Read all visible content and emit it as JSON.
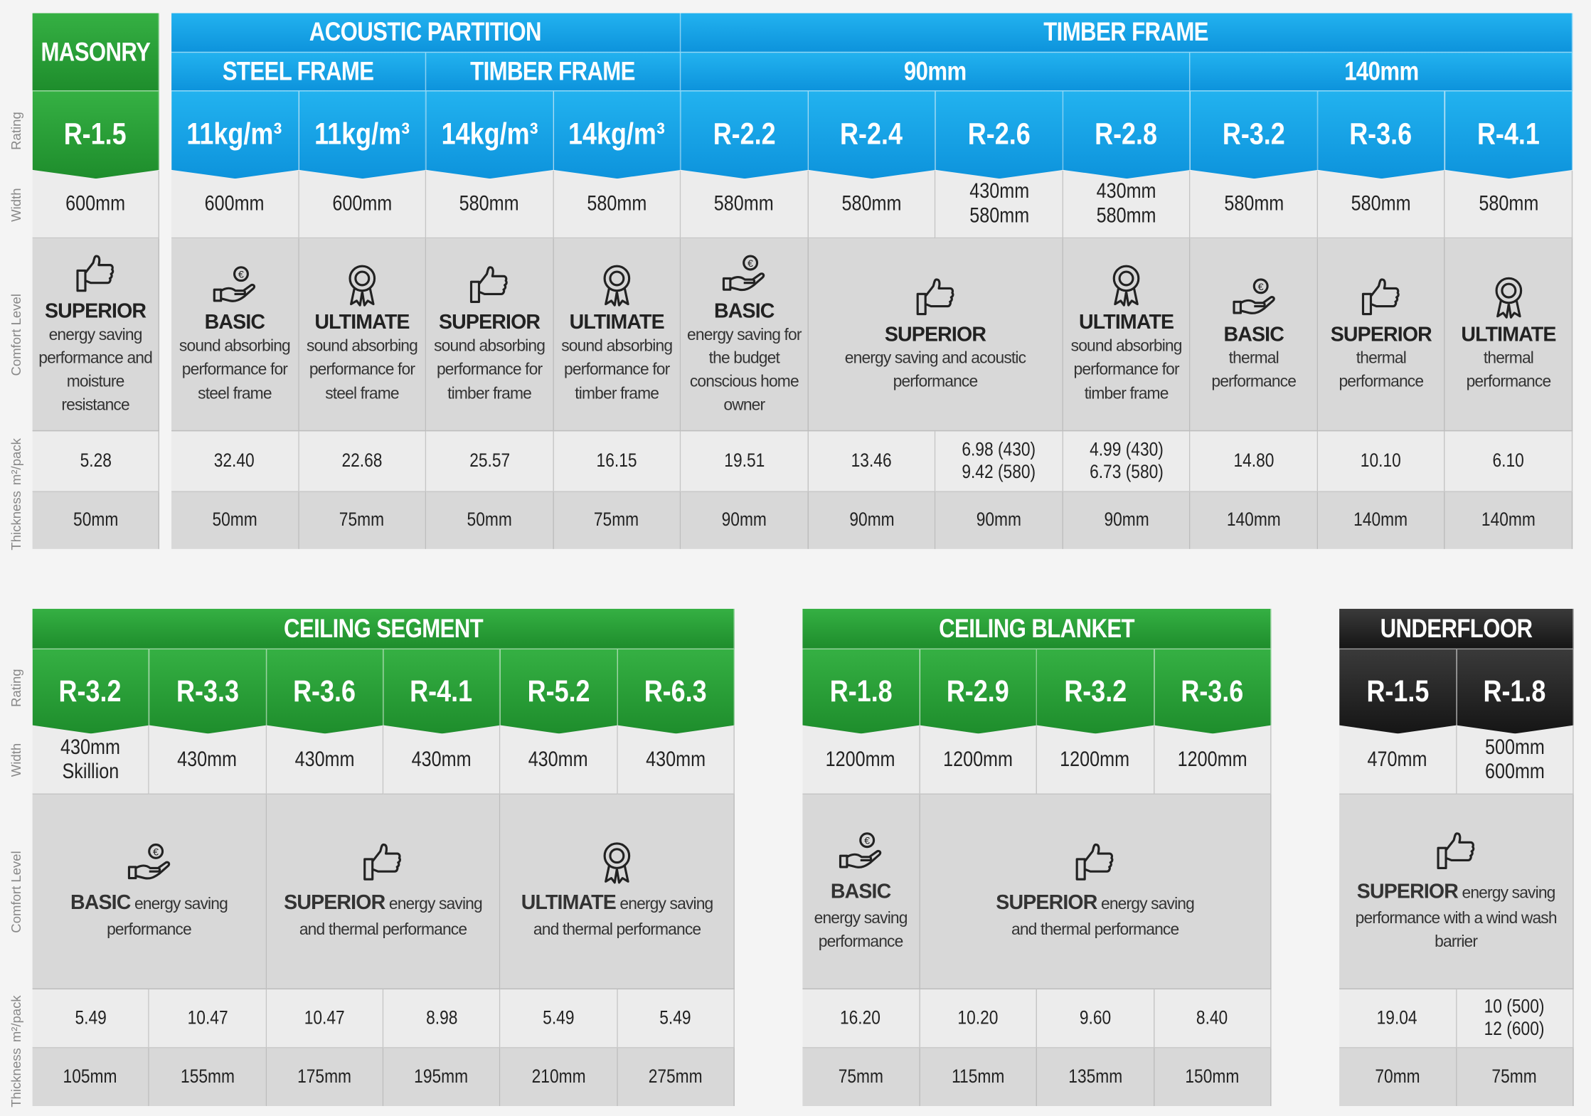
{
  "row_labels": [
    "Rating",
    "Width",
    "Comfort Level",
    "m²/pack",
    "Thickness"
  ],
  "tables": [
    {
      "color": "green",
      "header_rows": [
        [
          {
            "text": "MASONRY",
            "span": 1
          }
        ]
      ],
      "ratings": [
        "R-1.5"
      ],
      "widths": [
        "600mm"
      ],
      "comfort": [
        {
          "span": 1,
          "level": "SUPERIOR",
          "text": "energy saving performance and moisture resistance"
        }
      ],
      "packs": [
        "5.28"
      ],
      "thickness": [
        "50mm"
      ]
    },
    {
      "color": "blue",
      "header_rows": [
        [
          {
            "text": "ACOUSTIC PARTITION",
            "span": 4
          },
          {
            "text": "TIMBER FRAME",
            "span": 7
          }
        ],
        [
          {
            "text": "STEEL FRAME",
            "span": 2
          },
          {
            "text": "TIMBER FRAME",
            "span": 2
          },
          {
            "text": "90mm",
            "span": 4
          },
          {
            "text": "140mm",
            "span": 3
          }
        ]
      ],
      "ratings": [
        "11kg/m³",
        "11kg/m³",
        "14kg/m³",
        "14kg/m³",
        "R-2.2",
        "R-2.4",
        "R-2.6",
        "R-2.8",
        "R-3.2",
        "R-3.6",
        "R-4.1"
      ],
      "widths": [
        "600mm",
        "600mm",
        "580mm",
        "580mm",
        "580mm",
        "580mm",
        [
          "430mm",
          "580mm"
        ],
        [
          "430mm",
          "580mm"
        ],
        "580mm",
        "580mm",
        "580mm"
      ],
      "comfort": [
        {
          "span": 1,
          "level": "BASIC",
          "text": "sound absorbing performance for steel frame"
        },
        {
          "span": 1,
          "level": "ULTIMATE",
          "text": "sound absorbing performance for steel frame"
        },
        {
          "span": 1,
          "level": "SUPERIOR",
          "text": "sound absorbing performance for timber frame"
        },
        {
          "span": 1,
          "level": "ULTIMATE",
          "text": "sound absorbing performance for timber frame"
        },
        {
          "span": 1,
          "level": "BASIC",
          "text": "energy saving for the budget conscious home owner"
        },
        {
          "span": 2,
          "level": "SUPERIOR",
          "text": "energy saving and acoustic performance"
        },
        {
          "span": 1,
          "level": "ULTIMATE",
          "text": "sound absorbing performance for timber frame"
        },
        {
          "span": 1,
          "level": "BASIC",
          "text": "thermal performance"
        },
        {
          "span": 1,
          "level": "SUPERIOR",
          "text": "thermal performance"
        },
        {
          "span": 1,
          "level": "ULTIMATE",
          "text": "thermal performance"
        }
      ],
      "packs": [
        "32.40",
        "22.68",
        "25.57",
        "16.15",
        "19.51",
        "13.46",
        [
          "6.98 (430)",
          "9.42 (580)"
        ],
        [
          "4.99 (430)",
          "6.73 (580)"
        ],
        "14.80",
        "10.10",
        "6.10"
      ],
      "thickness": [
        "50mm",
        "75mm",
        "50mm",
        "75mm",
        "90mm",
        "90mm",
        "90mm",
        "90mm",
        "140mm",
        "140mm",
        "140mm"
      ]
    },
    {
      "color": "green",
      "header_rows": [
        [
          {
            "text": "CEILING SEGMENT",
            "span": 6
          }
        ]
      ],
      "ratings": [
        "R-3.2",
        "R-3.3",
        "R-3.6",
        "R-4.1",
        "R-5.2",
        "R-6.3"
      ],
      "widths": [
        [
          "430mm",
          "Skillion"
        ],
        "430mm",
        "430mm",
        "430mm",
        "430mm",
        "430mm"
      ],
      "comfort": [
        {
          "span": 2,
          "level": "BASIC",
          "text": "energy saving performance"
        },
        {
          "span": 2,
          "level": "SUPERIOR",
          "text": "energy saving and thermal performance"
        },
        {
          "span": 2,
          "level": "ULTIMATE",
          "text": "energy saving and thermal performance"
        }
      ],
      "packs": [
        "5.49",
        "10.47",
        "10.47",
        "8.98",
        "5.49",
        "5.49"
      ],
      "thickness": [
        "105mm",
        "155mm",
        "175mm",
        "195mm",
        "210mm",
        "275mm"
      ]
    },
    {
      "color": "green",
      "header_rows": [
        [
          {
            "text": "CEILING BLANKET",
            "span": 4
          }
        ]
      ],
      "ratings": [
        "R-1.8",
        "R-2.9",
        "R-3.2",
        "R-3.6"
      ],
      "widths": [
        "1200mm",
        "1200mm",
        "1200mm",
        "1200mm"
      ],
      "comfort": [
        {
          "span": 1,
          "level": "BASIC",
          "text": "energy saving performance"
        },
        {
          "span": 3,
          "level": "SUPERIOR",
          "text": "energy saving and thermal performance"
        }
      ],
      "packs": [
        "16.20",
        "10.20",
        "9.60",
        "8.40"
      ],
      "thickness": [
        "75mm",
        "115mm",
        "135mm",
        "150mm"
      ]
    },
    {
      "color": "black",
      "header_rows": [
        [
          {
            "text": "UNDERFLOOR",
            "span": 2
          }
        ]
      ],
      "ratings": [
        "R-1.5",
        "R-1.8"
      ],
      "widths": [
        "470mm",
        [
          "500mm",
          "600mm"
        ]
      ],
      "comfort": [
        {
          "span": 2,
          "level": "SUPERIOR",
          "text": "energy saving performance with a wind wash barrier"
        }
      ],
      "packs": [
        "19.04",
        [
          "10 (500)",
          "12 (600)"
        ]
      ],
      "thickness": [
        "70mm",
        "75mm"
      ]
    }
  ]
}
